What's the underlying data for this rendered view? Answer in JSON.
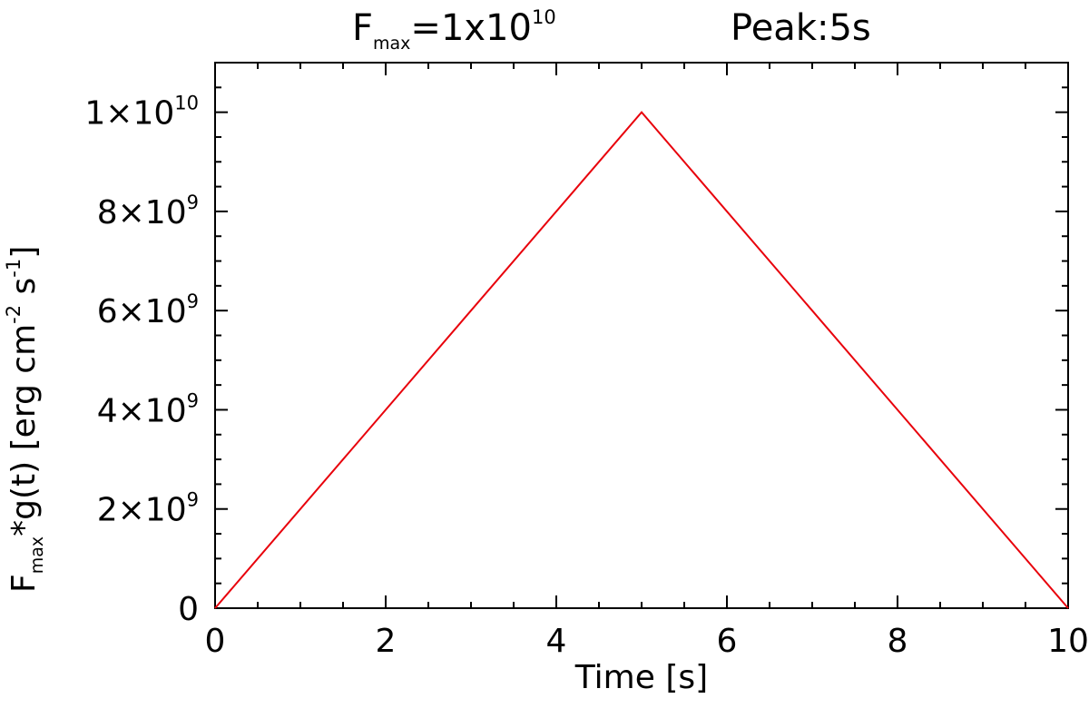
{
  "chart_data": {
    "type": "line",
    "title": {
      "part1_prefix": "F",
      "part1_sub": "max",
      "part1_suffix": "=1x10",
      "part1_sup": "10",
      "part2": "Peak:5s"
    },
    "xlabel": "Time   [s]",
    "ylabel": {
      "prefix": "F",
      "sub": "max",
      "mid": "*g(t)   [erg cm",
      "sup1": "-2",
      "mid2": " s",
      "sup2": "-1",
      "suffix": "]"
    },
    "xlim": [
      0,
      10
    ],
    "ylim": [
      0,
      11000000000
    ],
    "x_ticks": [
      0,
      2,
      4,
      6,
      8,
      10
    ],
    "x_minor_step": 0.5,
    "y_ticks": [
      {
        "value": 0,
        "mantissa": "0",
        "exp": ""
      },
      {
        "value": 2000000000,
        "mantissa": "2×10",
        "exp": "9"
      },
      {
        "value": 4000000000,
        "mantissa": "4×10",
        "exp": "9"
      },
      {
        "value": 6000000000,
        "mantissa": "6×10",
        "exp": "9"
      },
      {
        "value": 8000000000,
        "mantissa": "8×10",
        "exp": "9"
      },
      {
        "value": 10000000000,
        "mantissa": "1×10",
        "exp": "10"
      }
    ],
    "y_minor_step": 500000000,
    "grid": false,
    "series": [
      {
        "color": "#e8000b",
        "x": [
          0,
          5,
          10
        ],
        "y": [
          0,
          10000000000,
          0
        ]
      }
    ]
  }
}
